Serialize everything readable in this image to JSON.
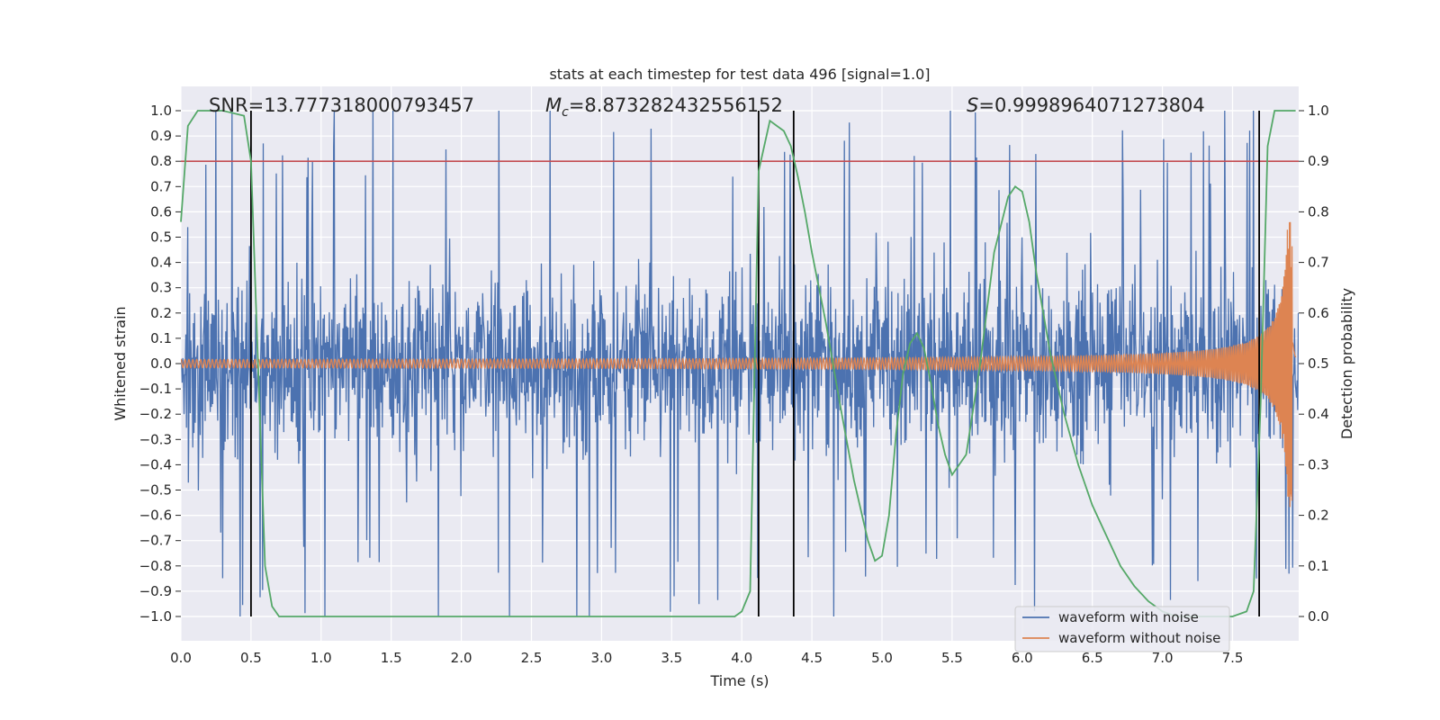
{
  "chart_data": {
    "type": "line",
    "title": "stats at each timestep for test data 496 [signal=1.0]",
    "xlabel": "Time (s)",
    "ylabel": "Whitened strain",
    "y2label": "Detection probability",
    "xlim": [
      0.0,
      8.0
    ],
    "ylim": [
      -1.1,
      1.1
    ],
    "y2lim": [
      -0.05,
      1.05
    ],
    "x_ticks": [
      0.0,
      0.5,
      1.0,
      1.5,
      2.0,
      2.5,
      3.0,
      3.5,
      4.0,
      4.5,
      5.0,
      5.5,
      6.0,
      6.5,
      7.0,
      7.5
    ],
    "y_ticks": [
      -1.0,
      -0.9,
      -0.8,
      -0.7,
      -0.6,
      -0.5,
      -0.4,
      -0.3,
      -0.2,
      -0.1,
      0.0,
      0.1,
      0.2,
      0.3,
      0.4,
      0.5,
      0.6,
      0.7,
      0.8,
      0.9,
      1.0
    ],
    "y2_ticks": [
      0.0,
      0.1,
      0.2,
      0.3,
      0.4,
      0.5,
      0.6,
      0.7,
      0.8,
      0.9,
      1.0
    ],
    "grid": true,
    "legend": {
      "position": "bottom-right",
      "entries": [
        "waveform with noise",
        "waveform without noise"
      ]
    },
    "annotations": {
      "snr": "SNR=13.777318000793457",
      "mc_symbol": "M",
      "mc_sub": "c",
      "mc_value": "=8.873282432556152",
      "s_symbol": "S",
      "s_value": "=0.9998964071273804"
    },
    "threshold": {
      "y2": 0.9,
      "color": "#c44e52"
    },
    "vertical_lines_x": [
      0.5,
      4.12,
      4.37,
      7.69
    ],
    "series": [
      {
        "name": "waveform with noise",
        "axis": "left",
        "color": "#4c72b0",
        "kind": "noise",
        "envelope": 0.5,
        "spike_max": 1.0,
        "duration": 8.0,
        "samples": 1800
      },
      {
        "name": "waveform without noise",
        "axis": "left",
        "color": "#dd8452",
        "kind": "chirp",
        "amp_start": 0.012,
        "amp_end": 0.58,
        "t_merge": 7.93,
        "duration": 7.95
      },
      {
        "name": "detection probability",
        "axis": "right",
        "color": "#55a868",
        "x": [
          0.0,
          0.05,
          0.12,
          0.2,
          0.3,
          0.45,
          0.5,
          0.55,
          0.6,
          0.65,
          0.7,
          1.0,
          2.0,
          3.0,
          3.95,
          4.0,
          4.06,
          4.12,
          4.2,
          4.25,
          4.3,
          4.35,
          4.4,
          4.45,
          4.5,
          4.6,
          4.7,
          4.8,
          4.9,
          4.95,
          5.0,
          5.05,
          5.1,
          5.15,
          5.2,
          5.25,
          5.3,
          5.35,
          5.4,
          5.45,
          5.5,
          5.6,
          5.7,
          5.8,
          5.9,
          5.95,
          6.0,
          6.05,
          6.1,
          6.2,
          6.3,
          6.4,
          6.5,
          6.6,
          6.7,
          6.8,
          6.9,
          7.0,
          7.1,
          7.2,
          7.3,
          7.4,
          7.5,
          7.6,
          7.65,
          7.7,
          7.75,
          7.8,
          7.85,
          7.9,
          7.95
        ],
        "y": [
          0.78,
          0.97,
          1.0,
          1.0,
          1.0,
          0.99,
          0.9,
          0.5,
          0.1,
          0.02,
          0.0,
          0.0,
          0.0,
          0.0,
          0.0,
          0.01,
          0.05,
          0.88,
          0.98,
          0.97,
          0.96,
          0.93,
          0.87,
          0.8,
          0.72,
          0.58,
          0.42,
          0.27,
          0.15,
          0.11,
          0.12,
          0.2,
          0.36,
          0.48,
          0.54,
          0.56,
          0.53,
          0.46,
          0.38,
          0.32,
          0.28,
          0.32,
          0.5,
          0.72,
          0.83,
          0.85,
          0.84,
          0.78,
          0.68,
          0.52,
          0.4,
          0.3,
          0.22,
          0.16,
          0.1,
          0.06,
          0.03,
          0.01,
          0.0,
          0.0,
          0.0,
          0.0,
          0.0,
          0.01,
          0.05,
          0.42,
          0.93,
          1.0,
          1.0,
          1.0,
          1.0
        ]
      }
    ]
  }
}
